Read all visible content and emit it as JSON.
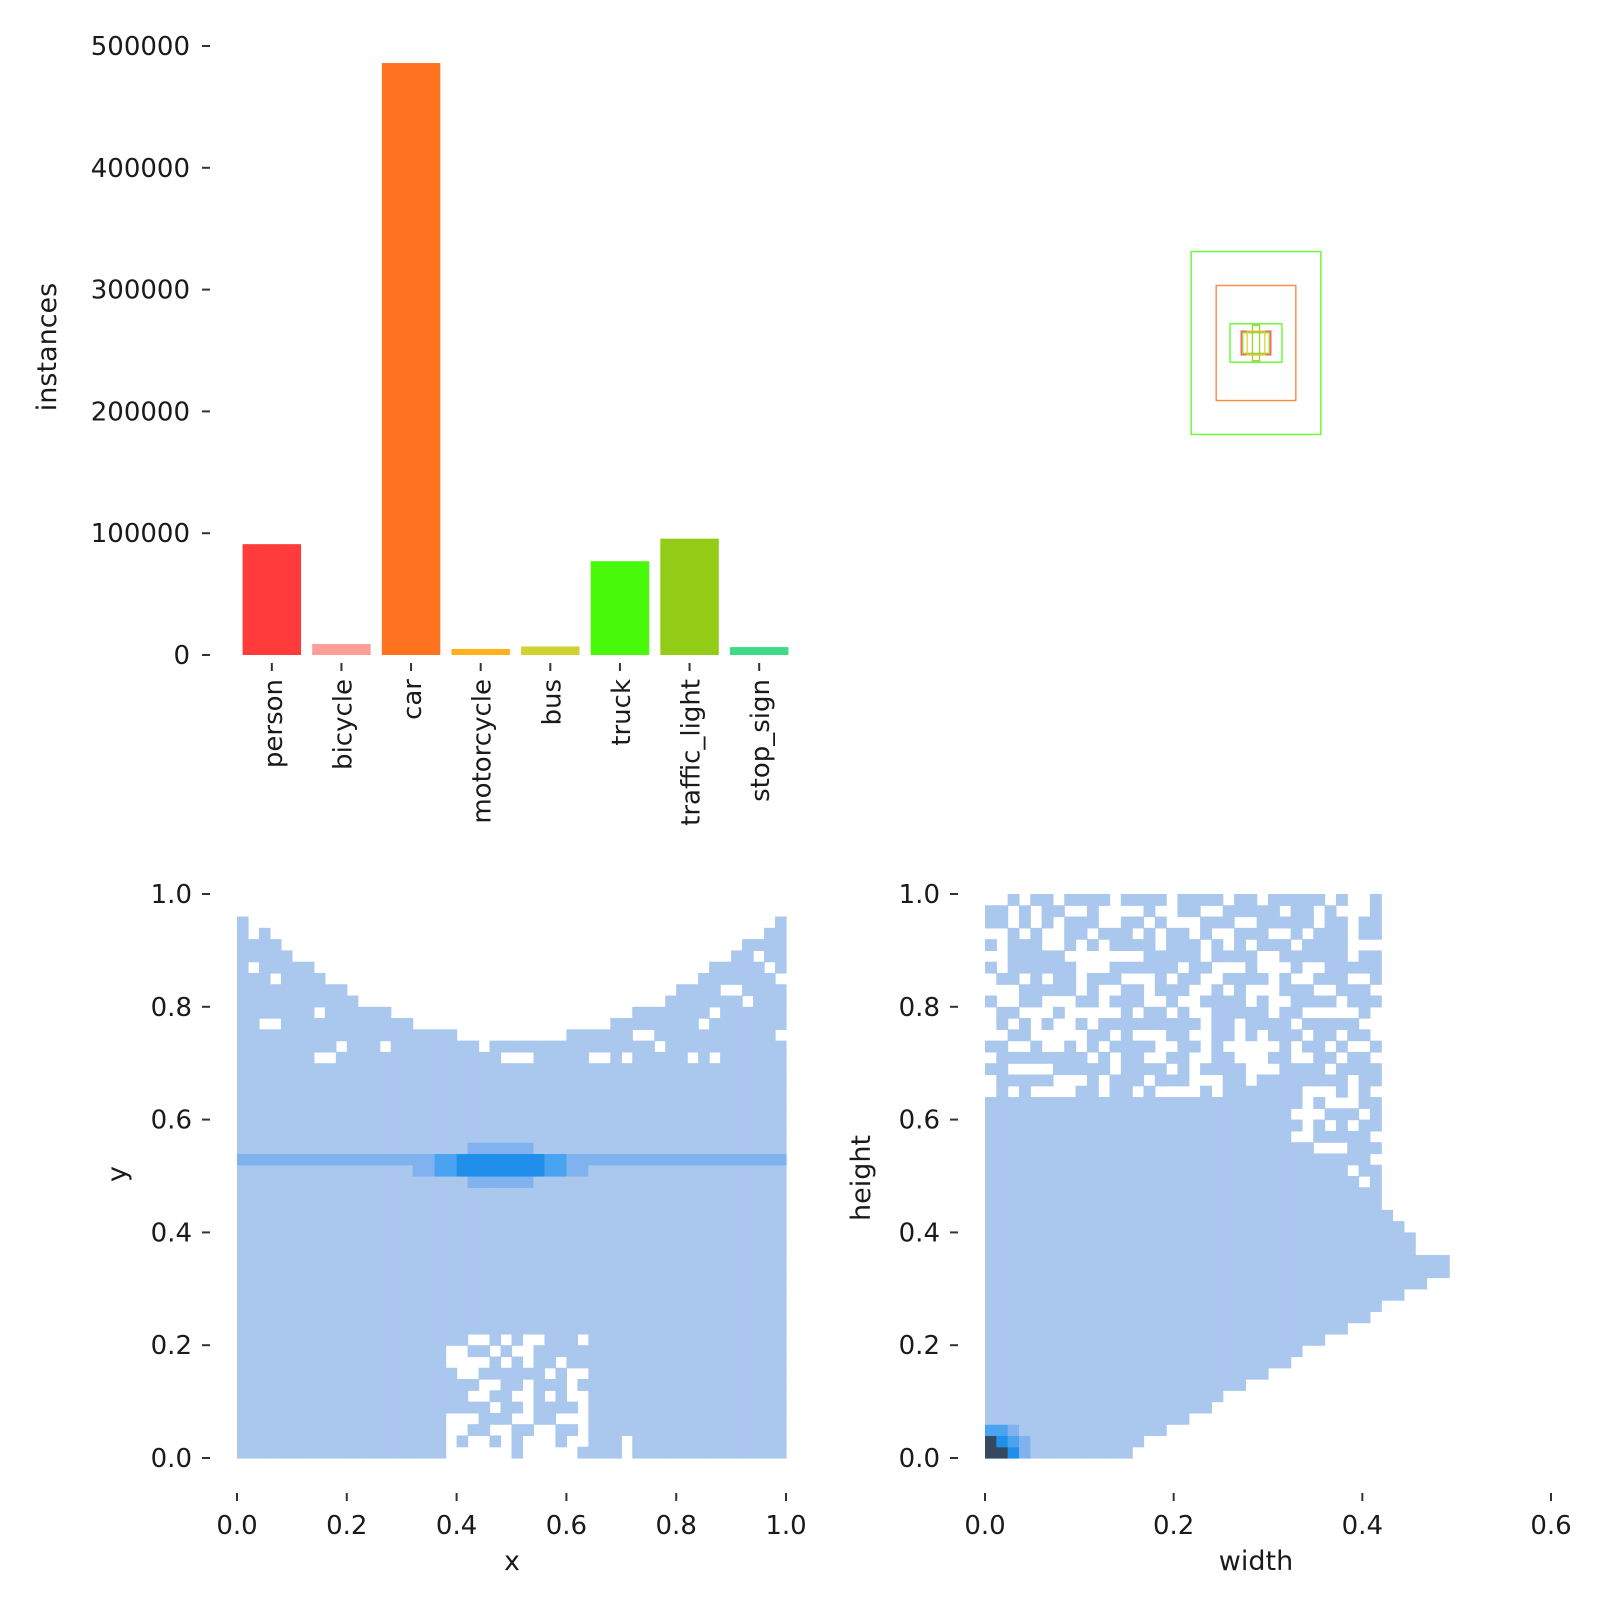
{
  "chart_data": [
    {
      "type": "bar",
      "categories": [
        "person",
        "bicycle",
        "car",
        "motorcycle",
        "bus",
        "truck",
        "traffic_light",
        "stop_sign"
      ],
      "values": [
        91000,
        9000,
        486000,
        5000,
        7000,
        77000,
        95500,
        6500
      ],
      "colors": [
        "#ff3b3b",
        "#ff9d97",
        "#ff7320",
        "#ffb21d",
        "#cfd231",
        "#48f90a",
        "#92cc17",
        "#3ddb86"
      ],
      "title": "",
      "xlabel": "",
      "ylabel": "instances",
      "ylim": [
        0,
        500000
      ],
      "yticks": [
        "0",
        "100000",
        "200000",
        "300000",
        "400000",
        "500000"
      ],
      "ytick_values": [
        0,
        100000,
        200000,
        300000,
        400000,
        500000
      ],
      "grid": false
    },
    {
      "type": "rectangles",
      "description_of_values": "label boxes as [width, height] (normalized), centered",
      "boxes": [
        {
          "w": 0.22,
          "h": 0.31,
          "color": "#48f90a"
        },
        {
          "w": 0.135,
          "h": 0.195,
          "color": "#ff7320"
        },
        {
          "w": 0.088,
          "h": 0.065,
          "color": "#48f90a"
        },
        {
          "w": 0.05,
          "h": 0.04,
          "color": "#ff3b3b"
        },
        {
          "w": 0.045,
          "h": 0.035,
          "color": "#92cc17"
        },
        {
          "w": 0.012,
          "h": 0.06,
          "color": "#92cc17"
        },
        {
          "w": 0.03,
          "h": 0.04,
          "color": "#cfd231"
        }
      ],
      "axes_visible": false
    },
    {
      "type": "heatmap",
      "xlabel": "x",
      "ylabel": "y",
      "xlim": [
        0.0,
        1.0
      ],
      "ylim": [
        0.0,
        1.0
      ],
      "xticks": [
        "0.0",
        "0.2",
        "0.4",
        "0.6",
        "0.8",
        "1.0"
      ],
      "xtick_values": [
        0.0,
        0.2,
        0.4,
        0.6,
        0.8,
        1.0
      ],
      "yticks": [
        "0.0",
        "0.2",
        "0.4",
        "0.6",
        "0.8",
        "1.0"
      ],
      "ytick_values": [
        0.0,
        0.2,
        0.4,
        0.6,
        0.8,
        1.0
      ],
      "bins": 50,
      "colors": {
        "low": "#aac7ee",
        "mid": "#4aa3f0",
        "high": "#1f8fea",
        "peak": "#34495e"
      },
      "hotspot": {
        "x": 0.48,
        "y": 0.52
      }
    },
    {
      "type": "heatmap",
      "xlabel": "width",
      "ylabel": "height",
      "xlim": [
        0.0,
        0.6
      ],
      "ylim": [
        0.0,
        1.0
      ],
      "xticks": [
        "0.0",
        "0.2",
        "0.4",
        "0.6"
      ],
      "xtick_values": [
        0.0,
        0.2,
        0.4,
        0.6
      ],
      "yticks": [
        "0.0",
        "0.2",
        "0.4",
        "0.6",
        "0.8",
        "1.0"
      ],
      "ytick_values": [
        0.0,
        0.2,
        0.4,
        0.6,
        0.8,
        1.0
      ],
      "bins": 50,
      "colors": {
        "low": "#aac7ee",
        "mid": "#4aa3f0",
        "high": "#1f8fea",
        "peak": "#34495e"
      },
      "hotspot": {
        "x": 0.01,
        "y": 0.015
      }
    }
  ]
}
